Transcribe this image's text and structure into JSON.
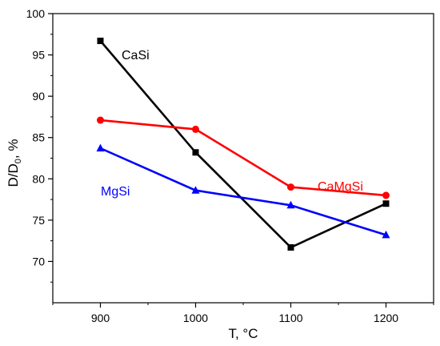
{
  "chart_data": {
    "type": "line",
    "title": "",
    "xlabel": "T, °C",
    "ylabel_main": "D/D",
    "ylabel_sub": "0",
    "ylabel_tail": ", %",
    "xlim": [
      850,
      1250
    ],
    "ylim": [
      65,
      100
    ],
    "x_ticks": [
      900,
      1000,
      1100,
      1200
    ],
    "x_tick_labels": [
      "900",
      "1000",
      "1100",
      "1200"
    ],
    "y_ticks": [
      70,
      75,
      80,
      85,
      90,
      95,
      100
    ],
    "y_tick_labels": [
      "70",
      "75",
      "80",
      "85",
      "90",
      "95",
      "100"
    ],
    "grid": false,
    "x": [
      900,
      1000,
      1100,
      1200
    ],
    "series": [
      {
        "name": "CaSi",
        "values": [
          96.7,
          83.2,
          71.7,
          77.0
        ],
        "color": "#000000",
        "marker": "square"
      },
      {
        "name": "CaMgSi",
        "values": [
          87.1,
          86.0,
          79.0,
          78.0
        ],
        "color": "#ff0000",
        "marker": "circle"
      },
      {
        "name": "MgSi",
        "values": [
          83.7,
          78.6,
          76.8,
          73.2
        ],
        "color": "#0000ff",
        "marker": "triangle"
      }
    ]
  }
}
